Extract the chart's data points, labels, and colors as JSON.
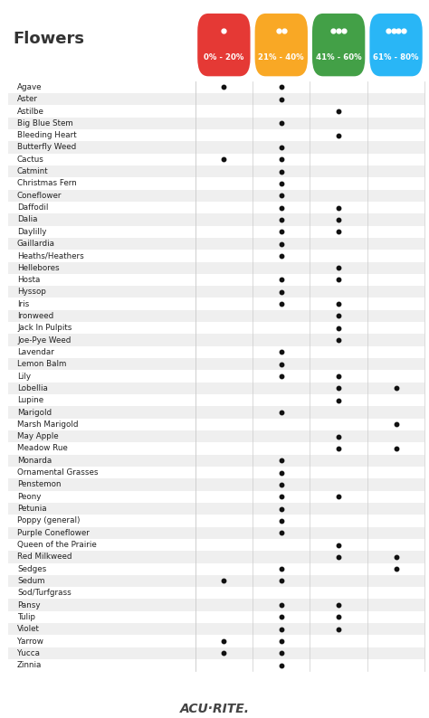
{
  "title": "Flowers",
  "col_labels": [
    "0% - 20%",
    "21% - 40%",
    "41% - 60%",
    "61% - 80%"
  ],
  "col_colors": [
    "#e53935",
    "#f9a825",
    "#43a047",
    "#29b6f6"
  ],
  "plants": [
    {
      "name": "Agave",
      "dots": [
        1,
        1,
        0,
        0
      ]
    },
    {
      "name": "Aster",
      "dots": [
        0,
        1,
        0,
        0
      ]
    },
    {
      "name": "Astilbe",
      "dots": [
        0,
        0,
        1,
        0
      ]
    },
    {
      "name": "Big Blue Stem",
      "dots": [
        0,
        1,
        0,
        0
      ]
    },
    {
      "name": "Bleeding Heart",
      "dots": [
        0,
        0,
        1,
        0
      ]
    },
    {
      "name": "Butterfly Weed",
      "dots": [
        0,
        1,
        0,
        0
      ]
    },
    {
      "name": "Cactus",
      "dots": [
        1,
        1,
        0,
        0
      ]
    },
    {
      "name": "Catmint",
      "dots": [
        0,
        1,
        0,
        0
      ]
    },
    {
      "name": "Christmas Fern",
      "dots": [
        0,
        1,
        0,
        0
      ]
    },
    {
      "name": "Coneflower",
      "dots": [
        0,
        1,
        0,
        0
      ]
    },
    {
      "name": "Daffodil",
      "dots": [
        0,
        1,
        1,
        0
      ]
    },
    {
      "name": "Dalia",
      "dots": [
        0,
        1,
        1,
        0
      ]
    },
    {
      "name": "Daylilly",
      "dots": [
        0,
        1,
        1,
        0
      ]
    },
    {
      "name": "Gaillardia",
      "dots": [
        0,
        1,
        0,
        0
      ]
    },
    {
      "name": "Heaths/Heathers",
      "dots": [
        0,
        1,
        0,
        0
      ]
    },
    {
      "name": "Hellebores",
      "dots": [
        0,
        0,
        1,
        0
      ]
    },
    {
      "name": "Hosta",
      "dots": [
        0,
        1,
        1,
        0
      ]
    },
    {
      "name": "Hyssop",
      "dots": [
        0,
        1,
        0,
        0
      ]
    },
    {
      "name": "Iris",
      "dots": [
        0,
        1,
        1,
        0
      ]
    },
    {
      "name": "Ironweed",
      "dots": [
        0,
        0,
        1,
        0
      ]
    },
    {
      "name": "Jack In Pulpits",
      "dots": [
        0,
        0,
        1,
        0
      ]
    },
    {
      "name": "Joe-Pye Weed",
      "dots": [
        0,
        0,
        1,
        0
      ]
    },
    {
      "name": "Lavendar",
      "dots": [
        0,
        1,
        0,
        0
      ]
    },
    {
      "name": "Lemon Balm",
      "dots": [
        0,
        1,
        0,
        0
      ]
    },
    {
      "name": "Lily",
      "dots": [
        0,
        1,
        1,
        0
      ]
    },
    {
      "name": "Lobellia",
      "dots": [
        0,
        0,
        1,
        1
      ]
    },
    {
      "name": "Lupine",
      "dots": [
        0,
        0,
        1,
        0
      ]
    },
    {
      "name": "Marigold",
      "dots": [
        0,
        1,
        0,
        0
      ]
    },
    {
      "name": "Marsh Marigold",
      "dots": [
        0,
        0,
        0,
        1
      ]
    },
    {
      "name": "May Apple",
      "dots": [
        0,
        0,
        1,
        0
      ]
    },
    {
      "name": "Meadow Rue",
      "dots": [
        0,
        0,
        1,
        1
      ]
    },
    {
      "name": "Monarda",
      "dots": [
        0,
        1,
        0,
        0
      ]
    },
    {
      "name": "Ornamental Grasses",
      "dots": [
        0,
        1,
        0,
        0
      ]
    },
    {
      "name": "Penstemon",
      "dots": [
        0,
        1,
        0,
        0
      ]
    },
    {
      "name": "Peony",
      "dots": [
        0,
        1,
        1,
        0
      ]
    },
    {
      "name": "Petunia",
      "dots": [
        0,
        1,
        0,
        0
      ]
    },
    {
      "name": "Poppy (general)",
      "dots": [
        0,
        1,
        0,
        0
      ]
    },
    {
      "name": "Purple Coneflower",
      "dots": [
        0,
        1,
        0,
        0
      ]
    },
    {
      "name": "Queen of the Prairie",
      "dots": [
        0,
        0,
        1,
        0
      ]
    },
    {
      "name": "Red Milkweed",
      "dots": [
        0,
        0,
        1,
        1
      ]
    },
    {
      "name": "Sedges",
      "dots": [
        0,
        1,
        0,
        1
      ]
    },
    {
      "name": "Sedum",
      "dots": [
        1,
        1,
        0,
        0
      ]
    },
    {
      "name": "Sod/Turfgrass",
      "dots": [
        0,
        0,
        0,
        0
      ]
    },
    {
      "name": "Pansy",
      "dots": [
        0,
        1,
        1,
        0
      ]
    },
    {
      "name": "Tulip",
      "dots": [
        0,
        1,
        1,
        0
      ]
    },
    {
      "name": "Violet",
      "dots": [
        0,
        1,
        1,
        0
      ]
    },
    {
      "name": "Yarrow",
      "dots": [
        1,
        1,
        0,
        0
      ]
    },
    {
      "name": "Yucca",
      "dots": [
        1,
        1,
        0,
        0
      ]
    },
    {
      "name": "Zinnia",
      "dots": [
        0,
        1,
        0,
        0
      ]
    }
  ],
  "bg_color": "#ffffff",
  "row_alt_color": "#efefef",
  "row_base_color": "#ffffff",
  "dot_color": "#111111",
  "logo_text": "ACU·RITE.",
  "figsize": [
    4.74,
    7.94
  ],
  "dpi": 100
}
